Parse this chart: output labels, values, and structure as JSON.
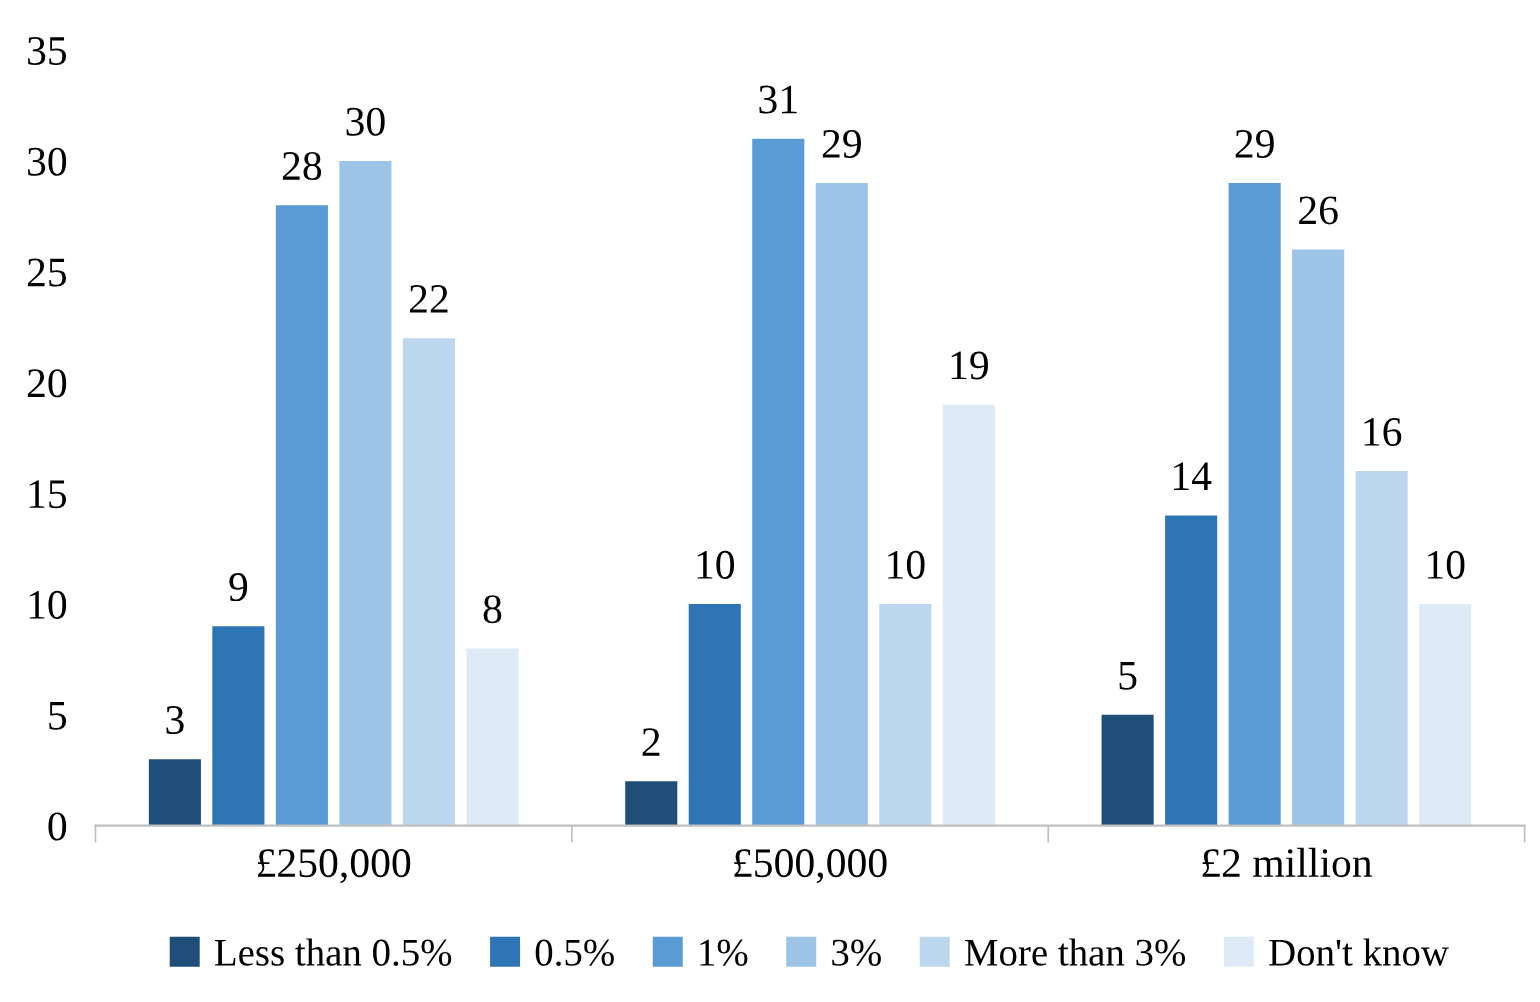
{
  "chart_data": {
    "type": "bar",
    "categories": [
      "£250,000",
      "£500,000",
      "£2 million"
    ],
    "series": [
      {
        "name": "Less than 0.5%",
        "color": "#1f4e79",
        "values": [
          3,
          2,
          5
        ]
      },
      {
        "name": "0.5%",
        "color": "#2e75b6",
        "values": [
          9,
          10,
          14
        ]
      },
      {
        "name": "1%",
        "color": "#5b9bd5",
        "values": [
          28,
          31,
          29
        ]
      },
      {
        "name": "3%",
        "color": "#9dc3e6",
        "values": [
          30,
          29,
          26
        ]
      },
      {
        "name": "More than 3%",
        "color": "#bdd7ee",
        "values": [
          22,
          10,
          16
        ]
      },
      {
        "name": "Don't know",
        "color": "#deebf7",
        "values": [
          8,
          19,
          10
        ]
      }
    ],
    "ylim": [
      0,
      35
    ],
    "yticks": [
      0,
      5,
      10,
      15,
      20,
      25,
      30,
      35
    ],
    "grid": false,
    "legend": "bottom",
    "data_labels": true
  }
}
